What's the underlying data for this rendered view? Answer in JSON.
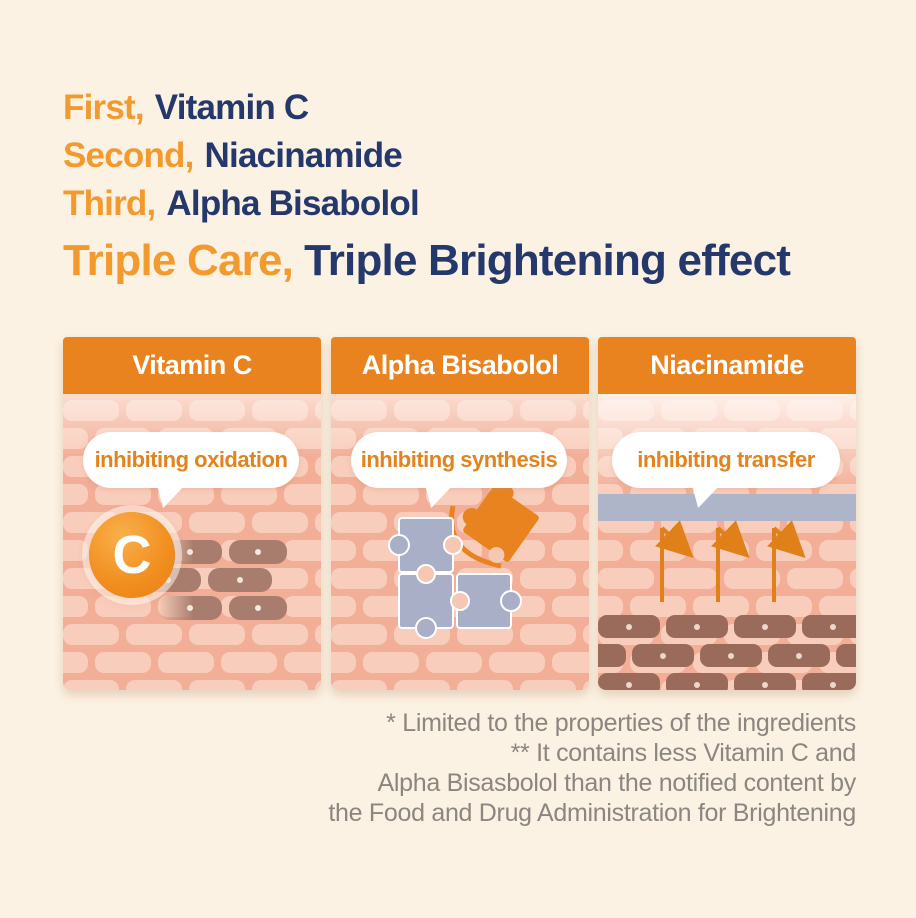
{
  "headline": {
    "lines": [
      {
        "accent": "First,",
        "rest": "Vitamin C"
      },
      {
        "accent": "Second,",
        "rest": "Niacinamide"
      },
      {
        "accent": "Third,",
        "rest": "Alpha Bisabolol"
      },
      {
        "accent": "Triple Care,",
        "rest": "Triple Brightening effect"
      }
    ]
  },
  "panels": [
    {
      "title": "Vitamin C",
      "bubble": "inhibiting oxidation",
      "badge_letter": "C",
      "illustration": "vitamin-c-badge-fading-pigment-bricks"
    },
    {
      "title": "Alpha Bisabolol",
      "bubble": "inhibiting synthesis",
      "illustration": "puzzle-piece-being-removed"
    },
    {
      "title": "Niacinamide",
      "bubble": "inhibiting transfer",
      "illustration": "arrows-deflected-by-barrier-over-melanin-bricks"
    }
  ],
  "footnote": {
    "lines": [
      "* Limited to the properties of the ingredients",
      "** It contains less Vitamin C and",
      "Alpha Bisasbolol than the notified content by",
      "the Food and Drug Administration for Brightening"
    ]
  },
  "colors": {
    "background": "#FCF2E3",
    "accent_orange": "#F29A2E",
    "navy": "#24386B",
    "deep_orange": "#E8831F",
    "bubble_orange": "#E2831E",
    "mortar": "#F2AE97",
    "brick_light": "#F9CDBC",
    "brick_dark": "#A87D6D",
    "melanin_brick": "#9A6B5B",
    "melanin_dot": "#EDD7CA",
    "barrier_gray": "#AEB5C8",
    "puzzle_lavender": "#A9AFC6",
    "puzzle_socket": "#F6C7B2",
    "footnote_gray": "#8B8680"
  }
}
